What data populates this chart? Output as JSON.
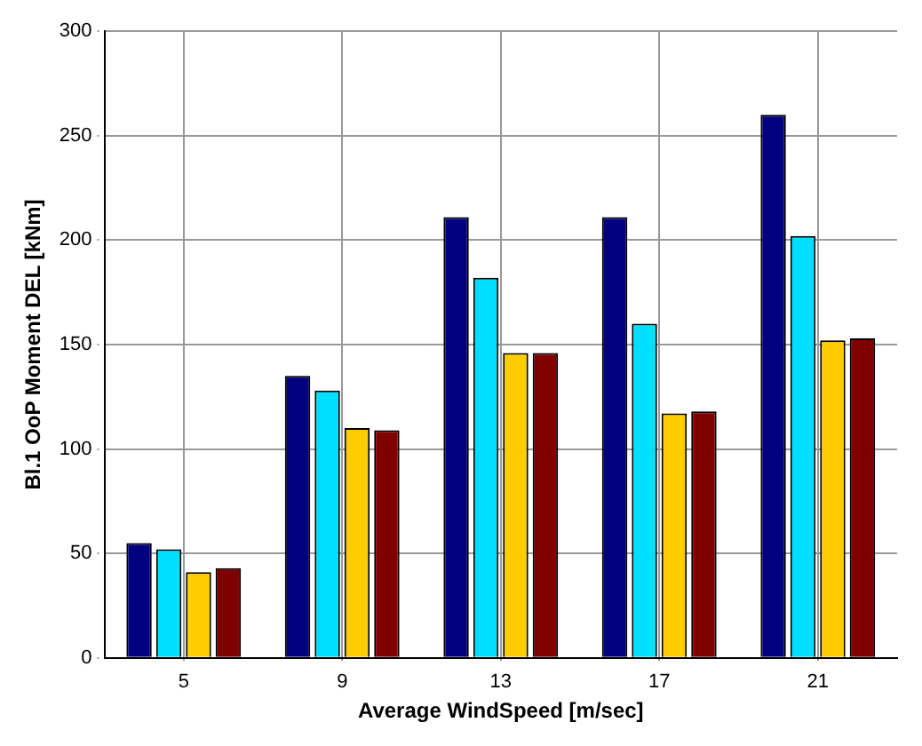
{
  "chart_data": {
    "type": "bar",
    "xlabel": "Average WindSpeed [m/sec]",
    "ylabel": "Bl.1 OoP Moment DEL [kNm]",
    "categories": [
      "5",
      "9",
      "13",
      "17",
      "21"
    ],
    "series": [
      {
        "color": "#000080",
        "values": [
          55,
          135,
          211,
          211,
          260
        ]
      },
      {
        "color": "#00dfff",
        "values": [
          52,
          128,
          182,
          160,
          202
        ]
      },
      {
        "color": "#ffcc00",
        "values": [
          41,
          110,
          146,
          117,
          152
        ]
      },
      {
        "color": "#800000",
        "values": [
          43,
          109,
          146,
          118,
          153
        ]
      }
    ],
    "ylim": [
      0,
      300
    ],
    "yticks": [
      0,
      50,
      100,
      150,
      200,
      250,
      300
    ],
    "grid": true,
    "legend": false
  }
}
